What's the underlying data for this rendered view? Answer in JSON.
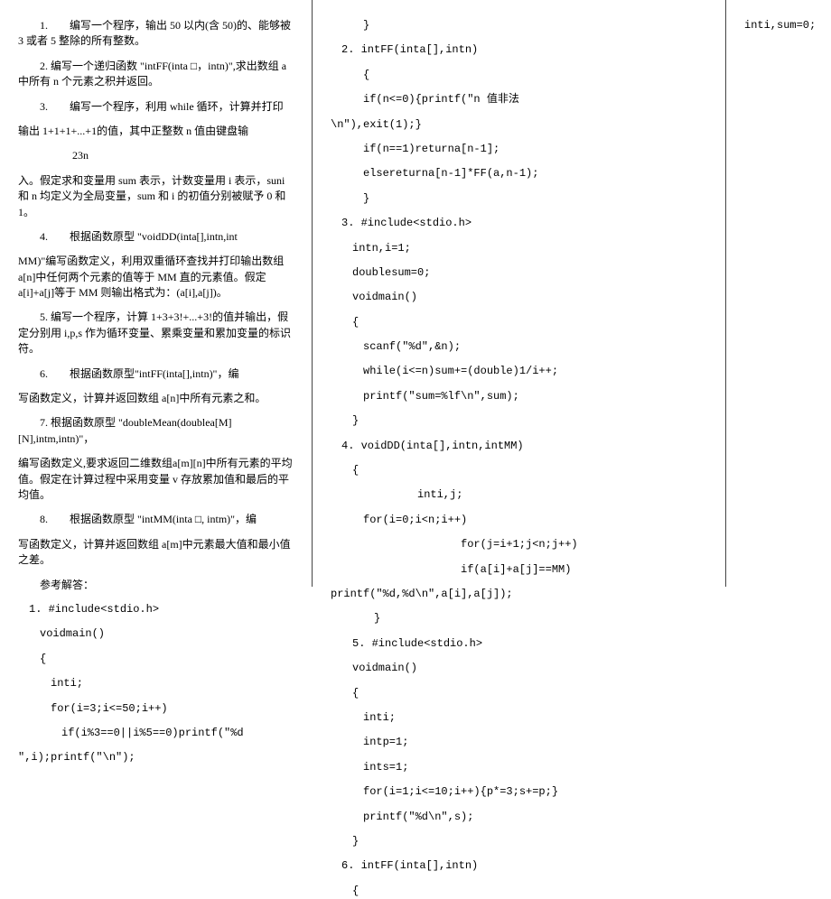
{
  "col1": {
    "q1": "1.　　编写一个程序，输出 50 以内(含 50)的、能够被 3 或者 5 整除的所有整数。",
    "q2": "2. 编写一个递归函数 \"intFF(inta □，intn)\",求出数组 a 中所有 n 个元素之积并返回。",
    "q3a": "3.　　编写一个程序，利用 while 循环，计算并打印",
    "q3b": "输出 1+1+1+...+1的值，其中正整数 n 值由键盘输",
    "q3c": "　　　　　23n",
    "q3d": "入。假定求和变量用 sum 表示，计数变量用 i 表示，suni 和 n 均定义为全局变量，sum 和 i 的初值分别被赋予 0 和 1。",
    "q4a": "4.　　根据函数原型 \"voidDD(inta[],intn,int",
    "q4b": "MM)\"编写函数定义，利用双重循环查找并打印输出数组 a[n]中任何两个元素的值等于 MM 直的元素值。假定a[i]+a[j]等于 MM 则输出格式为：(a[i],a[j])。",
    "q5": "5. 编写一个程序，计算 1+3+3!+...+3!的值并输出，假定分别用 i,p,s 作为循环变量、累乘变量和累加变量的标识符。",
    "q6a": "6.　　根据函数原型\"intFF(inta[],intn)\"，编",
    "q6b": "写函数定义，计算并返回数组 a[n]中所有元素之和。",
    "q7a": "7. 根据函数原型 \"doubleMean(doublea[M][N],intm,intn)\"，",
    "q7b": "编写函数定义,要求返回二维数组a[m][n]中所有元素的平均值。假定在计算过程中采用变量 v 存放累加值和最后的平均值。",
    "q8a": "8.　　根据函数原型 \"intMM(inta □, intm)\"，编",
    "q8b": "写函数定义，计算并返回数组 a[m]中元素最大值和最小值之差。",
    "ans": "参考解答：",
    "c1a": "1. #include<stdio.h>",
    "c1b": "voidmain()",
    "c1c": "{",
    "c1d": "inti;",
    "c1e": "for(i=3;i<=50;i++)",
    "c1f": "if(i%3==0||i%5==0)printf(\"%d",
    "c1g": "\",i);printf(\"\\n\");"
  },
  "col2": {
    "l1": "}",
    "l2": "2. intFF(inta[],intn)",
    "l3": "{",
    "l4": "if(n<=0){printf(\"n 值非法",
    "l5": "\\n\"),exit(1);}",
    "l6": "if(n==1)returna[n-1];",
    "l7": "elsereturna[n-1]*FF(a,n-1);",
    "l8": "}",
    "l9": "3. #include<stdio.h>",
    "l10": "intn,i=1;",
    "l11": "doublesum=0;",
    "l12": "voidmain()",
    "l13": "{",
    "l14": "scanf(\"%d\",&n);",
    "l15": "while(i<=n)sum+=(double)1/i++;",
    "l16": "printf(\"sum=%lf\\n\",sum);",
    "l17": "}",
    "l18": "4. voidDD(inta[],intn,intMM)",
    "l19": "{",
    "l20": "inti,j;",
    "l21": "for(i=0;i<n;i++)",
    "l22": "for(j=i+1;j<n;j++)",
    "l23": "if(a[i]+a[j]==MM)",
    "l24": "printf(\"%d,%d\\n\",a[i],a[j]);",
    "l25": "}",
    "l26": "5. #include<stdio.h>",
    "l27": "voidmain()",
    "l28": "{",
    "l29": "inti;",
    "l30": "intp=1;",
    "l31": "ints=1;",
    "l32": "for(i=1;i<=10;i++){p*=3;s+=p;}",
    "l33": "printf(\"%d\\n\",s);",
    "l34": "}",
    "l35": "6. intFF(inta[],intn)",
    "l36": "{"
  },
  "col3": {
    "l1": "inti,sum=0;"
  }
}
